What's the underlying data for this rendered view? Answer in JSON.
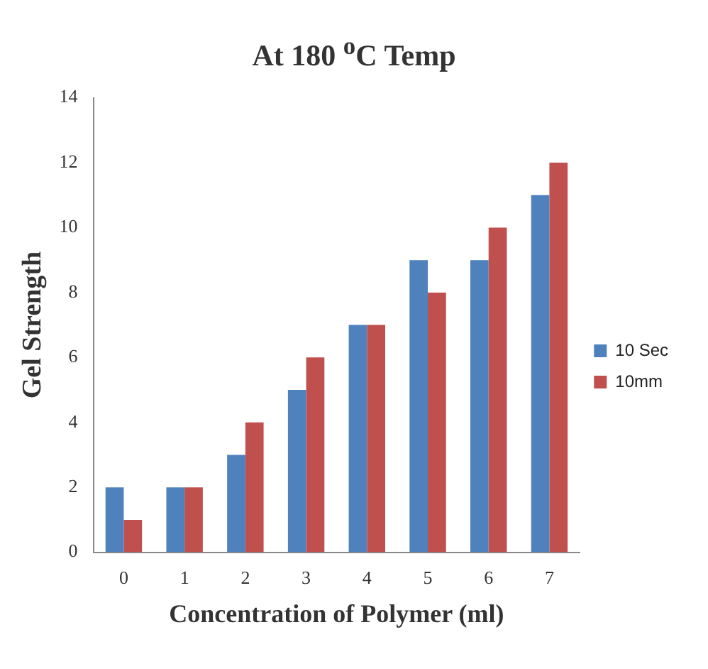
{
  "chart_data": {
    "type": "bar",
    "title": "At 180 $^{o}$C Temp",
    "xlabel": "Concentration of Polymer (ml)",
    "ylabel": "Gel Strength",
    "categories": [
      "0",
      "1",
      "2",
      "3",
      "4",
      "5",
      "6",
      "7"
    ],
    "series": [
      {
        "name": "10 Sec",
        "color": "#4f81bd",
        "values": [
          2,
          2,
          3,
          5,
          7,
          9,
          9,
          11
        ]
      },
      {
        "name": "10mm",
        "color": "#c0504d",
        "values": [
          1,
          2,
          4,
          6,
          7,
          8,
          10,
          12
        ]
      }
    ],
    "ylim": [
      0,
      14
    ],
    "yticks": [
      0,
      2,
      4,
      6,
      8,
      10,
      12,
      14
    ],
    "grid": false,
    "legend": "right"
  }
}
